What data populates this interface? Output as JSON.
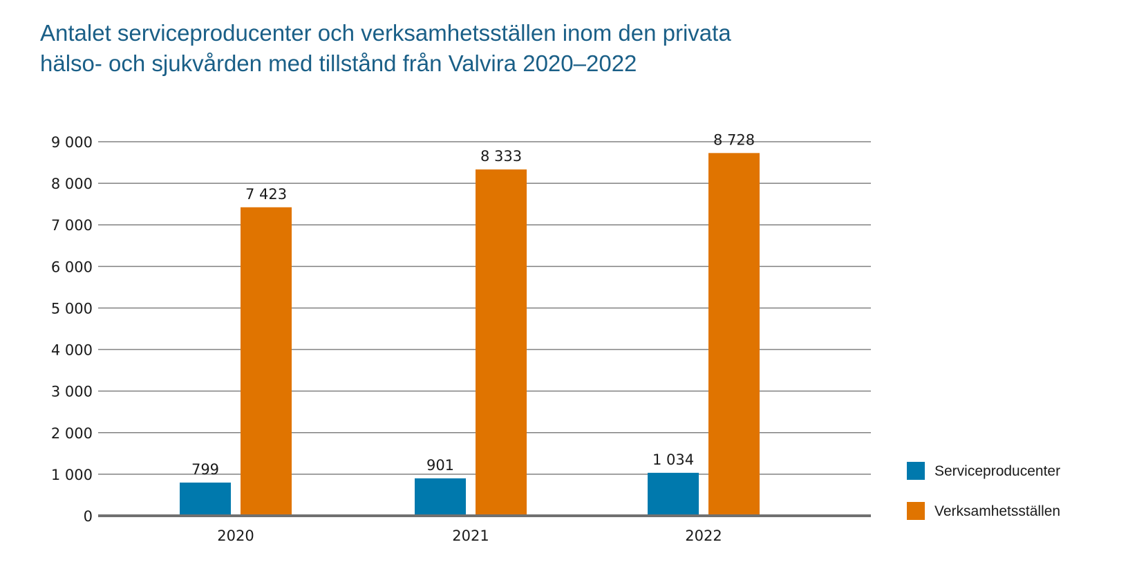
{
  "title_line1": "Antalet serviceproducenter och verksamhetsställen inom den privata",
  "title_line2": "hälso- och sjukvården med tillstånd från Valvira 2020–2022",
  "colors": {
    "serviceproducenter": "#0079ad",
    "verksamhetsstallen": "#e07400",
    "gridline": "#808080",
    "axis": "#707070",
    "title": "#1a5f87"
  },
  "chart_data": {
    "type": "bar",
    "title": "Antalet serviceproducenter och verksamhetsställen inom den privata hälso- och sjukvården med tillstånd från Valvira 2020–2022",
    "xlabel": "",
    "ylabel": "",
    "categories": [
      "2020",
      "2021",
      "2022"
    ],
    "series": [
      {
        "name": "Serviceproducenter",
        "values": [
          799,
          901,
          1034
        ],
        "labels": [
          "799",
          "901",
          "1 034"
        ]
      },
      {
        "name": "Verksamhetsställen",
        "values": [
          7423,
          8333,
          8728
        ],
        "labels": [
          "7 423",
          "8 333",
          "8 728"
        ]
      }
    ],
    "ylim": [
      0,
      9000
    ],
    "yticks": [
      0,
      1000,
      2000,
      3000,
      4000,
      5000,
      6000,
      7000,
      8000,
      9000
    ],
    "ytick_labels": [
      "0",
      "1 000",
      "2 000",
      "3 000",
      "4 000",
      "5 000",
      "6 000",
      "7 000",
      "8 000",
      "9 000"
    ],
    "grid": true,
    "legend_position": "right-bottom"
  }
}
